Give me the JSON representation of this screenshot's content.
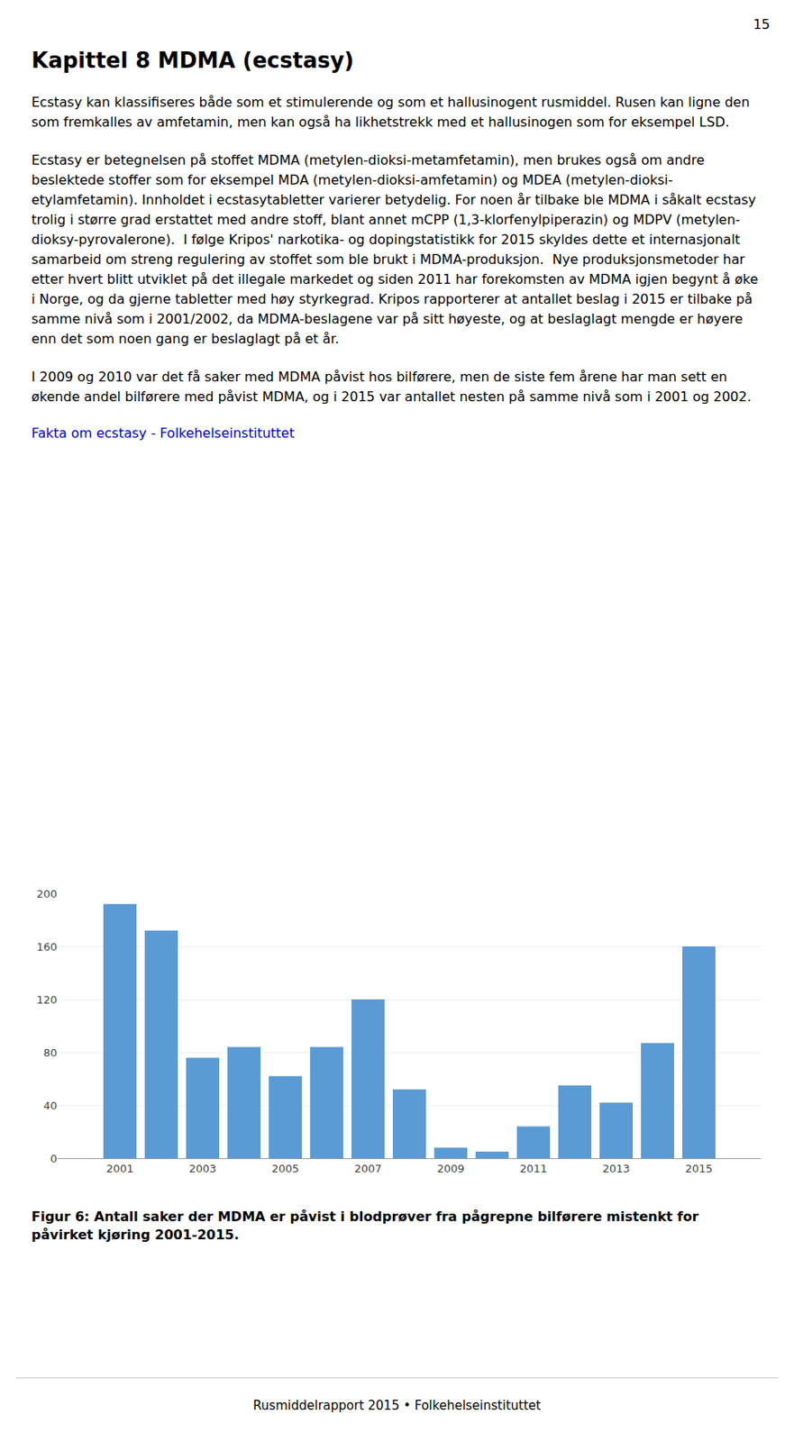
{
  "page_number": "15",
  "heading": "Kapittel 8 MDMA (ecstasy)",
  "paragraphs": [
    "Ecstasy kan klassifiseres både som et stimulerende og som et hallusinogent rusmiddel. Rusen kan ligne den som fremkalles av amfetamin, men kan også ha likhetstrekk med et hallusinogen som for eksempel LSD.",
    "Ecstasy er betegnelsen på stoffet MDMA (metylen-dioksi-metamfetamin), men brukes også om andre beslektede stoffer som for eksempel MDA (metylen-dioksi-amfetamin) og MDEA (metylen-dioksi-etylamfetamin). Innholdet i ecstasytabletter varierer betydelig. For noen år tilbake ble MDMA i såkalt ecstasy trolig i større grad erstattet med andre stoff, blant annet mCPP (1,3-klorfenylpiperazin) og MDPV (metylen-dioksy-pyrovalerone).  I følge Kripos' narkotika- og dopingstatistikk for 2015 skyldes dette et internasjonalt samarbeid om streng regulering av stoffet som ble brukt i MDMA-produksjon.  Nye produksjonsmetoder har etter hvert blitt utviklet på det illegale markedet og siden 2011 har forekomsten av MDMA igjen begynt å øke i Norge, og da gjerne tabletter med høy styrkegrad. Kripos rapporterer at antallet beslag i 2015 er tilbake på samme nivå som i 2001/2002, da MDMA-beslagene var på sitt høyeste, og at beslaglagt mengde er høyere enn det som noen gang er beslaglagt på et år.",
    "I 2009 og 2010 var det få saker med MDMA påvist hos bilførere, men de siste fem årene har man sett en økende andel bilførere med påvist MDMA, og i 2015 var antallet nesten på samme nivå som i 2001 og 2002."
  ],
  "link_text": "Fakta om ecstasy - Folkehelseinstituttet",
  "link_color": "#0000CC",
  "caption": "Figur 6: Antall saker der MDMA er påvist i blodprøver fra pågrepne bilførere mistenkt for påvirket kjøring 2001-2015.",
  "footer": "Rusmiddelrapport 2015 • Folkehelseinstituttet",
  "chart_data": {
    "type": "bar",
    "x": [
      2001,
      2002,
      2003,
      2004,
      2005,
      2006,
      2007,
      2008,
      2009,
      2010,
      2011,
      2012,
      2013,
      2014,
      2015
    ],
    "values": [
      192,
      172,
      76,
      84,
      62,
      84,
      120,
      52,
      8,
      5,
      24,
      55,
      42,
      87,
      160
    ],
    "color": "#5B9BD5",
    "xlim": [
      1999.5,
      2016.5
    ],
    "xticks": [
      2001,
      2003,
      2005,
      2007,
      2009,
      2011,
      2013,
      2015
    ],
    "ylim": [
      0,
      200
    ],
    "yticks": [
      0,
      40,
      80,
      120,
      160,
      200
    ],
    "grid": true
  }
}
